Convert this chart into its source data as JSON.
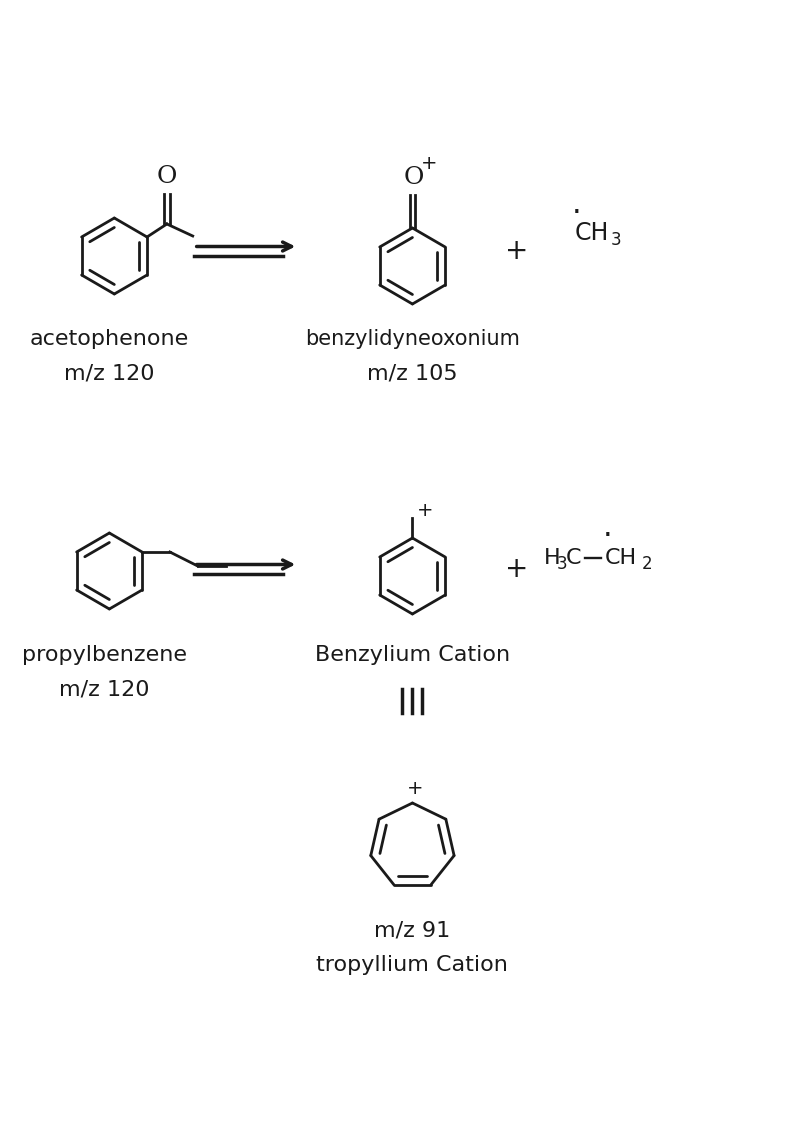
{
  "bg_color": "#ffffff",
  "line_color": "#1a1a1a",
  "line_width": 2.0,
  "text_color": "#1a1a1a",
  "section1": {
    "acetophenone_label": "acetophenone",
    "acetophenone_mz": "m/z 120",
    "product1_label": "benzylidyneoxonium",
    "product1_mz": "m/z 105"
  },
  "section2": {
    "reactant_label": "propylbenzene",
    "reactant_mz": "m/z 120",
    "product_label": "Benzylium Cation",
    "tropylium_mz": "m/z 91",
    "tropylium_label": "tropyllium Cation"
  },
  "font_size_label": 16,
  "font_size_mz": 16
}
